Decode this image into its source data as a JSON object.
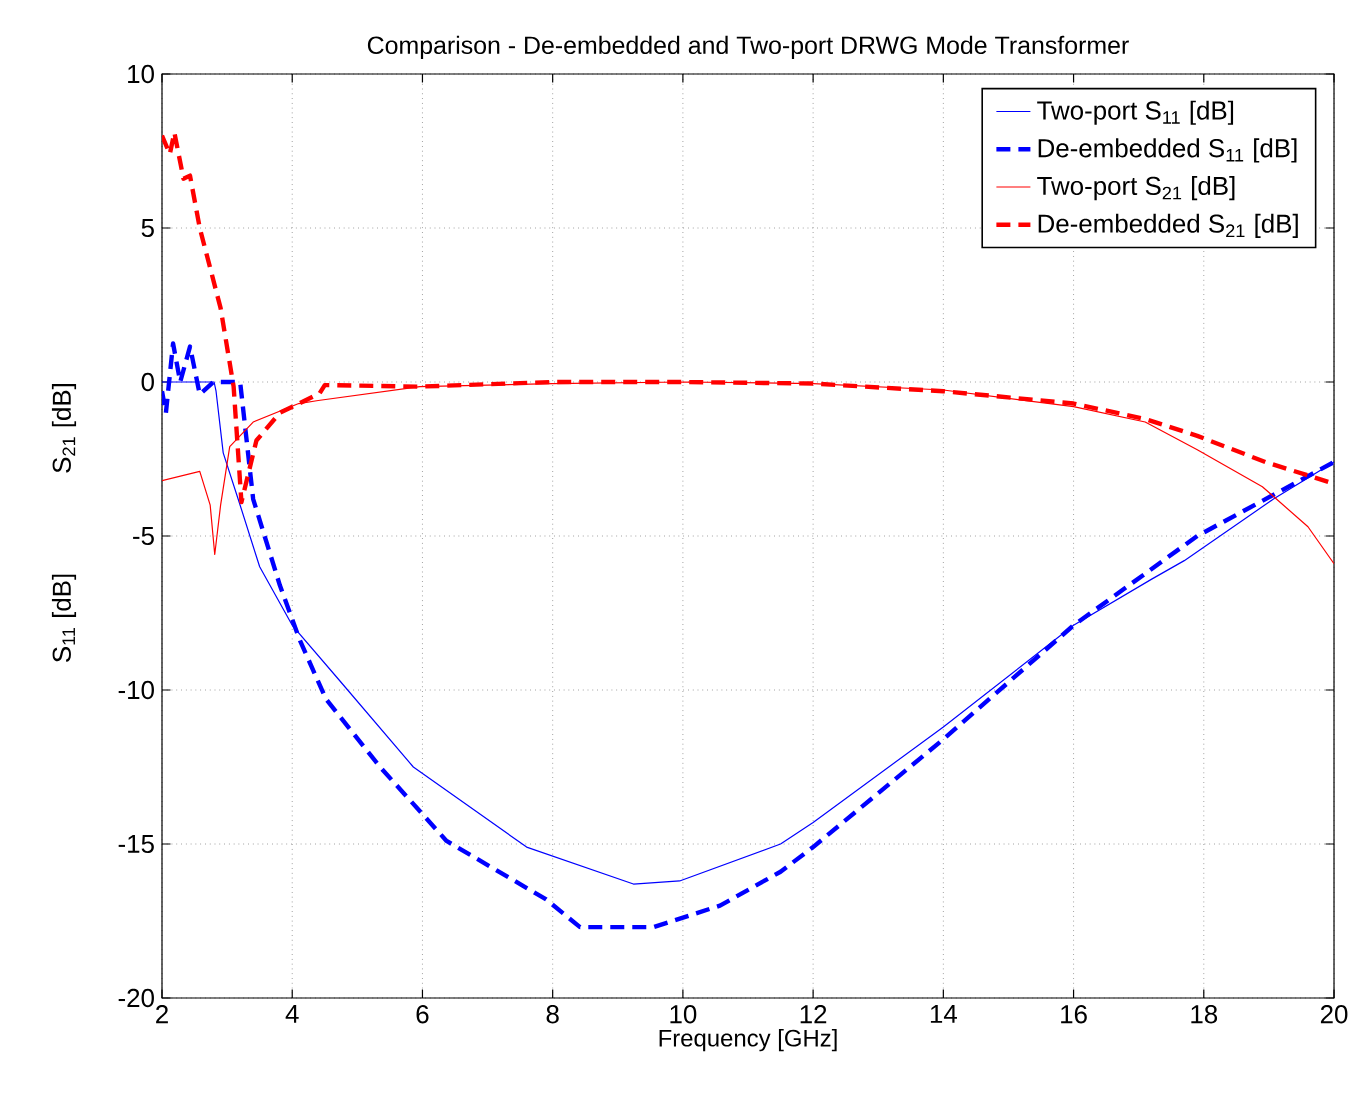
{
  "chart_data": {
    "type": "line",
    "title": "Comparison - De-embedded and Two-port DRWG Mode Transformer",
    "xlabel": "Frequency [GHz]",
    "ylabel": "S$_{11}$ [dB]",
    "annotations": [
      "S$_{21}$ [dB]"
    ],
    "xlim": [
      2,
      20
    ],
    "ylim": [
      -20,
      10
    ],
    "xticks": [
      2,
      4,
      6,
      8,
      10,
      12,
      14,
      16,
      18,
      20
    ],
    "yticks": [
      -20,
      -15,
      -10,
      -5,
      0,
      5,
      10
    ],
    "grid": true,
    "legend": "top right",
    "series": [
      {
        "name": "Two-port S$_{11}$ [dB]",
        "color": "#0000ff",
        "line_style": "solid",
        "x": [
          2,
          2.8,
          2.83,
          2.94,
          3.2,
          3.5,
          4.0,
          4.73,
          5.86,
          7.6,
          9.24,
          9.95,
          11.5,
          12.0,
          14.0,
          16.0,
          17.2,
          17.7,
          19.07,
          20
        ],
        "values": [
          0,
          0,
          -0.3,
          -2.3,
          -4.0,
          -6.0,
          -7.9,
          -9.7,
          -12.5,
          -15.1,
          -16.3,
          -16.2,
          -15.0,
          -14.3,
          -11.2,
          -7.9,
          -6.4,
          -5.8,
          -3.8,
          -2.6
        ]
      },
      {
        "name": "De-embedded S$_{11}$ [dB]",
        "color": "#0000ff",
        "line_style": "dashed",
        "x": [
          2,
          2.06,
          2.17,
          2.28,
          2.43,
          2.58,
          2.79,
          3.2,
          3.4,
          3.81,
          4.12,
          4.52,
          5.35,
          6.37,
          7.9,
          8.42,
          9.55,
          10.57,
          11.5,
          12.0,
          14.0,
          16.0,
          17.9,
          20
        ],
        "values": [
          -0.3,
          -1.0,
          1.25,
          0,
          1.15,
          -0.4,
          0,
          0,
          -3.8,
          -6.6,
          -8.4,
          -10.3,
          -12.5,
          -14.9,
          -16.8,
          -17.7,
          -17.7,
          -17.0,
          -15.9,
          -15.1,
          -11.6,
          -7.9,
          -5.0,
          -2.6
        ]
      },
      {
        "name": "Two-port S$_{21}$ [dB]",
        "color": "#ff0000",
        "line_style": "solid",
        "x": [
          2,
          2.58,
          2.74,
          2.81,
          2.9,
          3.04,
          3.4,
          4.1,
          4.4,
          5.96,
          8,
          10,
          12,
          14,
          16,
          17.1,
          17.9,
          18.9,
          19.6,
          20
        ],
        "values": [
          -3.2,
          -2.9,
          -4.0,
          -5.6,
          -4.0,
          -2.1,
          -1.3,
          -0.7,
          -0.6,
          -0.15,
          -0.05,
          0,
          -0.05,
          -0.26,
          -0.8,
          -1.3,
          -2.2,
          -3.4,
          -4.7,
          -5.9
        ]
      },
      {
        "name": "De-embedded S$_{21}$ [dB]",
        "color": "#ff0000",
        "line_style": "dashed",
        "x": [
          2,
          2.12,
          2.19,
          2.33,
          2.43,
          2.58,
          2.9,
          3.1,
          3.22,
          3.45,
          3.81,
          4.42,
          4.5,
          5.96,
          8,
          10,
          12,
          14,
          16,
          17.1,
          17.9,
          18.95,
          20
        ],
        "values": [
          8.0,
          7.4,
          8.1,
          6.6,
          6.7,
          5.0,
          2.4,
          -0.15,
          -3.9,
          -1.9,
          -1.0,
          -0.37,
          -0.1,
          -0.15,
          0,
          0,
          -0.05,
          -0.3,
          -0.7,
          -1.2,
          -1.75,
          -2.6,
          -3.3
        ]
      }
    ]
  }
}
